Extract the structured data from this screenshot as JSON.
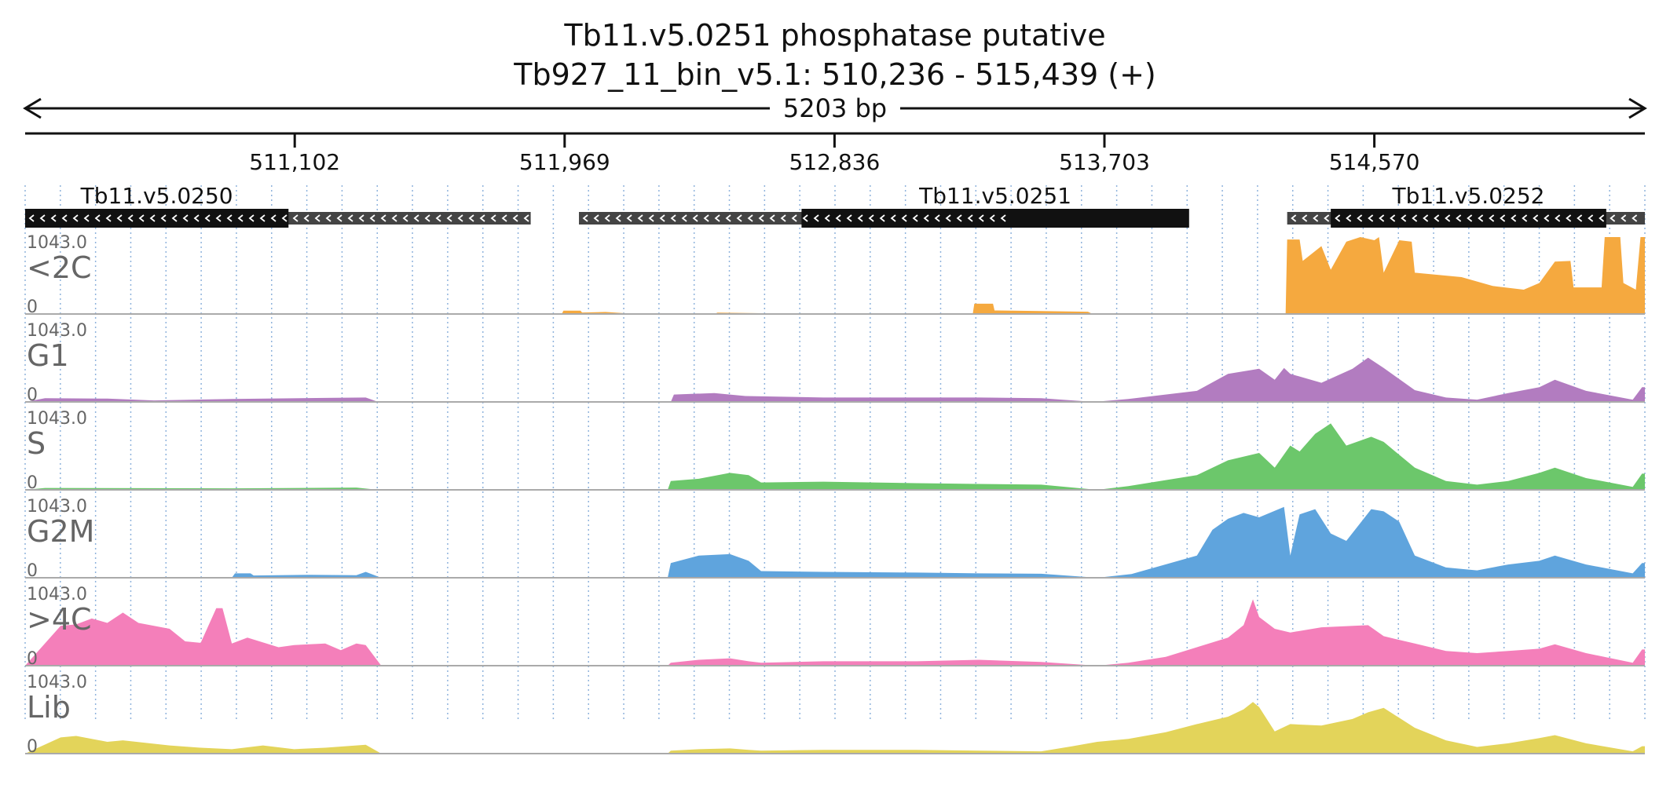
{
  "title": {
    "line1": "Tb11.v5.0251  phosphatase  putative",
    "line2": "Tb927_11_bin_v5.1: 510,236 - 515,439 (+)"
  },
  "span_label": "5203 bp",
  "chart_data": {
    "type": "area",
    "region": {
      "start": 510236,
      "end": 515439
    },
    "ticks": [
      {
        "pos": 511102,
        "label": "511,102"
      },
      {
        "pos": 511969,
        "label": "511,969"
      },
      {
        "pos": 512836,
        "label": "512,836"
      },
      {
        "pos": 513703,
        "label": "513,703"
      },
      {
        "pos": 514570,
        "label": "514,570"
      }
    ],
    "genes": [
      {
        "label": "Tb11.v5.0250",
        "strand": "-",
        "start": 510236,
        "end": 511860,
        "cds_start": 510236,
        "cds_end": 511082
      },
      {
        "label": "Tb11.v5.0251",
        "strand": "-",
        "start": 512015,
        "end": 513410,
        "cds_start": 512730,
        "cds_end": 513975
      },
      {
        "label": "Tb11.v5.0252",
        "strand": "-",
        "start": 514290,
        "end": 515439,
        "cds_start": 514430,
        "cds_end": 515315
      }
    ],
    "grid": "dotted-vertical",
    "ylim": [
      0,
      1043.0
    ],
    "series": [
      {
        "name": "<2C",
        "color": "#f5a93f",
        "max_label": "1043.0",
        "min_label": "0"
      },
      {
        "name": "G1",
        "color": "#b27cc0",
        "max_label": "1043.0",
        "min_label": "0"
      },
      {
        "name": "S",
        "color": "#6cc76b",
        "max_label": "1043.0",
        "min_label": "0"
      },
      {
        "name": "G2M",
        "color": "#5fa4dd",
        "max_label": "1043.0",
        "min_label": "0"
      },
      {
        "name": ">4C",
        "color": "#f47fba",
        "max_label": "1043.0",
        "min_label": "0"
      },
      {
        "name": "Lib",
        "color": "#e3d45a",
        "max_label": "1043.0",
        "min_label": "0"
      }
    ],
    "profiles": [
      [
        [
          510236,
          0
        ],
        [
          511960,
          0
        ],
        [
          511965,
          45
        ],
        [
          512020,
          45
        ],
        [
          512025,
          20
        ],
        [
          512100,
          28
        ],
        [
          512200,
          0
        ],
        [
          512450,
          0
        ],
        [
          512460,
          18
        ],
        [
          512600,
          10
        ],
        [
          512800,
          0
        ],
        [
          513280,
          0
        ],
        [
          513285,
          140
        ],
        [
          513345,
          140
        ],
        [
          513350,
          48
        ],
        [
          513500,
          40
        ],
        [
          513650,
          30
        ],
        [
          513665,
          0
        ],
        [
          514285,
          0
        ],
        [
          514290,
          1010
        ],
        [
          514330,
          1010
        ],
        [
          514340,
          720
        ],
        [
          514400,
          920
        ],
        [
          514430,
          600
        ],
        [
          514480,
          980
        ],
        [
          514525,
          1043
        ],
        [
          514570,
          1000
        ],
        [
          514585,
          1043
        ],
        [
          514600,
          560
        ],
        [
          514650,
          1000
        ],
        [
          514690,
          980
        ],
        [
          514700,
          560
        ],
        [
          514850,
          500
        ],
        [
          514950,
          380
        ],
        [
          515050,
          330
        ],
        [
          515100,
          420
        ],
        [
          515150,
          710
        ],
        [
          515200,
          720
        ],
        [
          515210,
          360
        ],
        [
          515300,
          360
        ],
        [
          515310,
          1043
        ],
        [
          515360,
          1043
        ],
        [
          515370,
          420
        ],
        [
          515410,
          330
        ],
        [
          515425,
          1043
        ],
        [
          515439,
          1043
        ]
      ],
      [
        [
          510236,
          0
        ],
        [
          510300,
          50
        ],
        [
          510500,
          45
        ],
        [
          510650,
          20
        ],
        [
          510900,
          40
        ],
        [
          511200,
          55
        ],
        [
          511330,
          60
        ],
        [
          511370,
          0
        ],
        [
          511960,
          0
        ],
        [
          512310,
          0
        ],
        [
          512320,
          100
        ],
        [
          512450,
          120
        ],
        [
          512550,
          80
        ],
        [
          512800,
          60
        ],
        [
          513100,
          60
        ],
        [
          513300,
          60
        ],
        [
          513500,
          50
        ],
        [
          513670,
          0
        ],
        [
          513780,
          40
        ],
        [
          514000,
          150
        ],
        [
          514100,
          380
        ],
        [
          514200,
          450
        ],
        [
          514250,
          300
        ],
        [
          514280,
          460
        ],
        [
          514300,
          380
        ],
        [
          514400,
          260
        ],
        [
          514500,
          450
        ],
        [
          514550,
          600
        ],
        [
          514600,
          460
        ],
        [
          514700,
          160
        ],
        [
          514800,
          60
        ],
        [
          514900,
          30
        ],
        [
          515000,
          120
        ],
        [
          515100,
          200
        ],
        [
          515150,
          300
        ],
        [
          515250,
          150
        ],
        [
          515400,
          30
        ],
        [
          515430,
          200
        ],
        [
          515439,
          200
        ]
      ],
      [
        [
          510236,
          0
        ],
        [
          510300,
          25
        ],
        [
          510900,
          20
        ],
        [
          511300,
          30
        ],
        [
          511370,
          0
        ],
        [
          511960,
          0
        ],
        [
          512300,
          0
        ],
        [
          512310,
          120
        ],
        [
          512400,
          150
        ],
        [
          512500,
          230
        ],
        [
          512560,
          200
        ],
        [
          512600,
          100
        ],
        [
          512800,
          110
        ],
        [
          513100,
          90
        ],
        [
          513300,
          80
        ],
        [
          513500,
          70
        ],
        [
          513680,
          0
        ],
        [
          513780,
          50
        ],
        [
          514000,
          200
        ],
        [
          514100,
          400
        ],
        [
          514200,
          500
        ],
        [
          514250,
          300
        ],
        [
          514300,
          600
        ],
        [
          514330,
          520
        ],
        [
          514380,
          760
        ],
        [
          514430,
          900
        ],
        [
          514480,
          600
        ],
        [
          514560,
          720
        ],
        [
          514600,
          650
        ],
        [
          514700,
          300
        ],
        [
          514800,
          120
        ],
        [
          514900,
          70
        ],
        [
          515000,
          120
        ],
        [
          515100,
          230
        ],
        [
          515150,
          300
        ],
        [
          515250,
          160
        ],
        [
          515400,
          40
        ],
        [
          515430,
          220
        ],
        [
          515439,
          220
        ]
      ],
      [
        [
          510236,
          0
        ],
        [
          510900,
          0
        ],
        [
          510910,
          60
        ],
        [
          510960,
          60
        ],
        [
          510970,
          30
        ],
        [
          511150,
          40
        ],
        [
          511300,
          35
        ],
        [
          511330,
          80
        ],
        [
          511380,
          0
        ],
        [
          511960,
          0
        ],
        [
          512300,
          0
        ],
        [
          512310,
          200
        ],
        [
          512400,
          300
        ],
        [
          512500,
          320
        ],
        [
          512560,
          230
        ],
        [
          512600,
          90
        ],
        [
          512800,
          80
        ],
        [
          513100,
          70
        ],
        [
          513300,
          60
        ],
        [
          513500,
          55
        ],
        [
          513680,
          0
        ],
        [
          513790,
          50
        ],
        [
          514000,
          300
        ],
        [
          514050,
          650
        ],
        [
          514100,
          800
        ],
        [
          514150,
          880
        ],
        [
          514200,
          820
        ],
        [
          514280,
          960
        ],
        [
          514300,
          300
        ],
        [
          514330,
          860
        ],
        [
          514380,
          930
        ],
        [
          514430,
          600
        ],
        [
          514480,
          500
        ],
        [
          514560,
          930
        ],
        [
          514600,
          900
        ],
        [
          514650,
          760
        ],
        [
          514700,
          300
        ],
        [
          514800,
          140
        ],
        [
          514900,
          100
        ],
        [
          515000,
          180
        ],
        [
          515100,
          230
        ],
        [
          515150,
          300
        ],
        [
          515250,
          180
        ],
        [
          515400,
          60
        ],
        [
          515430,
          200
        ],
        [
          515439,
          200
        ]
      ],
      [
        [
          510236,
          0
        ],
        [
          510350,
          540
        ],
        [
          510400,
          560
        ],
        [
          510450,
          640
        ],
        [
          510500,
          580
        ],
        [
          510550,
          720
        ],
        [
          510600,
          580
        ],
        [
          510700,
          500
        ],
        [
          510750,
          330
        ],
        [
          510800,
          310
        ],
        [
          510850,
          780
        ],
        [
          510870,
          780
        ],
        [
          510900,
          300
        ],
        [
          510950,
          380
        ],
        [
          511050,
          250
        ],
        [
          511100,
          280
        ],
        [
          511200,
          300
        ],
        [
          511250,
          210
        ],
        [
          511300,
          300
        ],
        [
          511330,
          280
        ],
        [
          511380,
          0
        ],
        [
          511960,
          0
        ],
        [
          512300,
          0
        ],
        [
          512310,
          40
        ],
        [
          512400,
          80
        ],
        [
          512500,
          100
        ],
        [
          512560,
          60
        ],
        [
          512600,
          40
        ],
        [
          512800,
          60
        ],
        [
          513100,
          60
        ],
        [
          513300,
          80
        ],
        [
          513500,
          50
        ],
        [
          513680,
          0
        ],
        [
          513780,
          40
        ],
        [
          513900,
          120
        ],
        [
          514000,
          250
        ],
        [
          514100,
          380
        ],
        [
          514150,
          550
        ],
        [
          514180,
          900
        ],
        [
          514200,
          660
        ],
        [
          514250,
          500
        ],
        [
          514300,
          450
        ],
        [
          514400,
          520
        ],
        [
          514550,
          550
        ],
        [
          514600,
          400
        ],
        [
          514700,
          300
        ],
        [
          514800,
          200
        ],
        [
          514900,
          170
        ],
        [
          515000,
          200
        ],
        [
          515100,
          230
        ],
        [
          515150,
          290
        ],
        [
          515250,
          170
        ],
        [
          515400,
          40
        ],
        [
          515430,
          220
        ],
        [
          515439,
          220
        ]
      ],
      [
        [
          510236,
          0
        ],
        [
          510350,
          220
        ],
        [
          510400,
          240
        ],
        [
          510500,
          160
        ],
        [
          510550,
          180
        ],
        [
          510700,
          110
        ],
        [
          510800,
          80
        ],
        [
          510900,
          60
        ],
        [
          511000,
          110
        ],
        [
          511100,
          60
        ],
        [
          511200,
          80
        ],
        [
          511330,
          120
        ],
        [
          511380,
          0
        ],
        [
          511960,
          0
        ],
        [
          512300,
          0
        ],
        [
          512310,
          40
        ],
        [
          512400,
          60
        ],
        [
          512500,
          70
        ],
        [
          512560,
          50
        ],
        [
          512600,
          40
        ],
        [
          512800,
          50
        ],
        [
          513100,
          50
        ],
        [
          513300,
          40
        ],
        [
          513500,
          30
        ],
        [
          513600,
          100
        ],
        [
          513680,
          160
        ],
        [
          513780,
          200
        ],
        [
          513900,
          290
        ],
        [
          514000,
          400
        ],
        [
          514100,
          500
        ],
        [
          514150,
          600
        ],
        [
          514180,
          700
        ],
        [
          514200,
          630
        ],
        [
          514250,
          300
        ],
        [
          514300,
          400
        ],
        [
          514400,
          380
        ],
        [
          514500,
          470
        ],
        [
          514550,
          560
        ],
        [
          514600,
          620
        ],
        [
          514700,
          350
        ],
        [
          514800,
          180
        ],
        [
          514900,
          90
        ],
        [
          515000,
          140
        ],
        [
          515100,
          210
        ],
        [
          515150,
          250
        ],
        [
          515250,
          140
        ],
        [
          515400,
          30
        ],
        [
          515430,
          100
        ],
        [
          515439,
          100
        ]
      ]
    ]
  }
}
